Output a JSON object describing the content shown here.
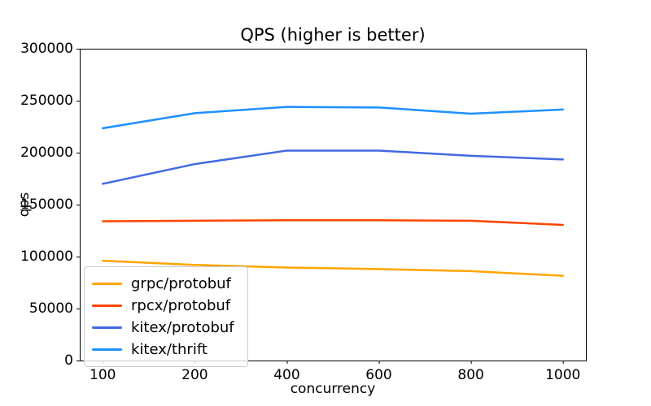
{
  "window": {
    "background_color": "#ffffff",
    "text_color": "#000000"
  },
  "chart_data": {
    "type": "line",
    "title": "QPS (higher is better)",
    "xlabel": "concurrency",
    "ylabel": "qps",
    "x": [
      100,
      200,
      400,
      600,
      800,
      1000
    ],
    "x_tick_labels": [
      "100",
      "200",
      "400",
      "600",
      "800",
      "1000"
    ],
    "x_axis_scale": "evenly-spaced-points",
    "y_ticks": [
      0,
      50000,
      100000,
      150000,
      200000,
      250000,
      300000
    ],
    "y_tick_labels": [
      "0",
      "50000",
      "100000",
      "150000",
      "200000",
      "250000",
      "300000"
    ],
    "ylim": [
      0,
      300000
    ],
    "grid": false,
    "legend_position": "lower-left",
    "series": [
      {
        "name": "grpc/protobuf",
        "color": "#FFA500",
        "values": [
          96000,
          92000,
          89500,
          88000,
          86000,
          81500
        ]
      },
      {
        "name": "rpcx/protobuf",
        "color": "#FF4500",
        "values": [
          134000,
          134500,
          135000,
          135000,
          134500,
          130500
        ]
      },
      {
        "name": "kitex/protobuf",
        "color": "#4169E1",
        "values": [
          170000,
          189000,
          202000,
          202000,
          197000,
          193500
        ]
      },
      {
        "name": "kitex/thrift",
        "color": "#1E90FF",
        "values": [
          223500,
          238000,
          244000,
          243500,
          237500,
          241500
        ]
      }
    ]
  }
}
